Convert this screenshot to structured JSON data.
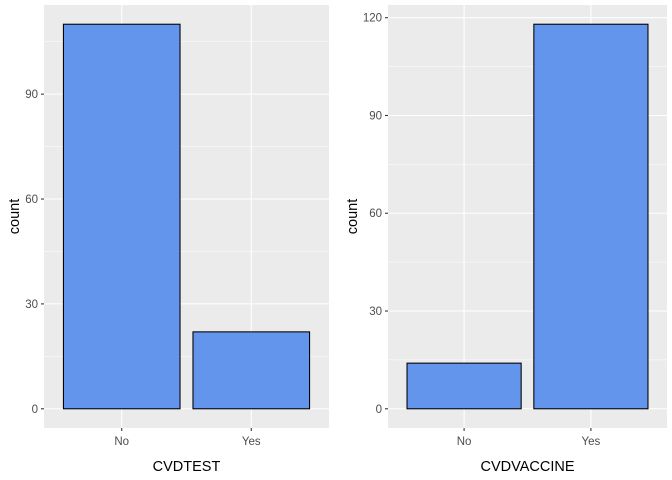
{
  "colors": {
    "panel_background": "#EBEBEB",
    "grid": "#FFFFFF",
    "bar_fill": "#6495ED",
    "bar_outline": "#000000",
    "tick_label": "#4D4D4D",
    "axis_title": "#000000"
  },
  "chart_data": [
    {
      "type": "bar",
      "title": "",
      "xlabel": "CVDTEST",
      "ylabel": "count",
      "categories": [
        "No",
        "Yes"
      ],
      "values": [
        110,
        22
      ],
      "ylim": [
        -5.5,
        115.5
      ],
      "yticks": [
        0,
        30,
        60,
        90
      ],
      "grid": true,
      "legend": "none"
    },
    {
      "type": "bar",
      "title": "",
      "xlabel": "CVDVACCINE",
      "ylabel": "count",
      "categories": [
        "No",
        "Yes"
      ],
      "values": [
        14,
        118
      ],
      "ylim": [
        -5.9,
        123.9
      ],
      "yticks": [
        0,
        30,
        60,
        90,
        120
      ],
      "grid": true,
      "legend": "none"
    }
  ]
}
